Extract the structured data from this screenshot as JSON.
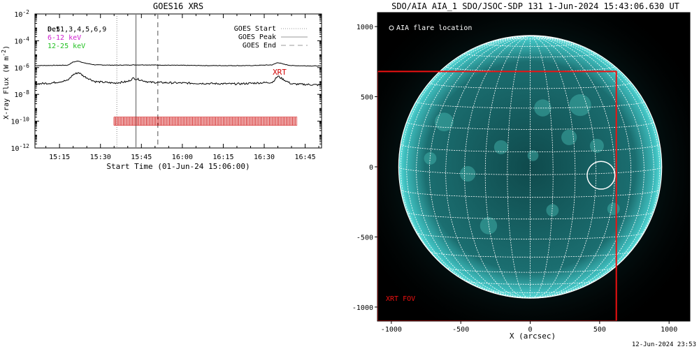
{
  "chart_data": [
    {
      "type": "line",
      "title": "GOES16 XRS",
      "xlabel": "Start Time (01-Jun-24 15:06:00)",
      "ylabel": "X-ray Flux (W m^-2)",
      "x_tick_labels": [
        "15:15",
        "15:30",
        "15:45",
        "16:00",
        "16:15",
        "16:30",
        "16:45"
      ],
      "x_tick_times": [
        "15:15",
        "15:30",
        "15:45",
        "16:00",
        "16:15",
        "16:30",
        "16:45"
      ],
      "xlim": [
        "15:06",
        "16:51"
      ],
      "ylim": [
        1e-12,
        0.01
      ],
      "yscale": "log",
      "y_tick_exponents": [
        -2,
        -4,
        -6,
        -8,
        -10,
        -12
      ],
      "y_tick_base": "10",
      "legend_header": "Det1,3,4,5,6,9",
      "legend_header_overlay": "0.5",
      "channels": [
        {
          "label": "6-12 keV",
          "color": "#d020d0"
        },
        {
          "label": "12-25 keV",
          "color": "#20c020"
        }
      ],
      "series": [
        {
          "name": "upper",
          "color": "#000000",
          "x": [
            "15:06",
            "15:18",
            "15:20",
            "15:22",
            "15:24",
            "15:28",
            "15:35",
            "15:45",
            "15:55",
            "16:10",
            "16:25",
            "16:33",
            "16:35",
            "16:37",
            "16:40",
            "16:51"
          ],
          "y": [
            1.4e-06,
            1.5e-06,
            2.6e-06,
            3.1e-06,
            2.2e-06,
            1.6e-06,
            1.5e-06,
            1.6e-06,
            1.5e-06,
            1.4e-06,
            1.4e-06,
            1.6e-06,
            2.4e-06,
            1.8e-06,
            1.4e-06,
            1.3e-06
          ]
        },
        {
          "name": "lower",
          "color": "#000000",
          "x": [
            "15:06",
            "15:12",
            "15:18",
            "15:20",
            "15:22",
            "15:24",
            "15:28",
            "15:35",
            "15:40",
            "15:42",
            "15:44",
            "15:48",
            "16:00",
            "16:20",
            "16:33",
            "16:35",
            "16:37",
            "16:40",
            "16:51"
          ],
          "y": [
            6e-08,
            7e-08,
            1.1e-07,
            3e-07,
            4.3e-07,
            2.2e-07,
            9e-08,
            7e-08,
            9e-08,
            1.6e-07,
            1.3e-07,
            8e-08,
            7e-08,
            6e-08,
            8e-08,
            2.3e-07,
            1.3e-07,
            6e-08,
            5e-08
          ]
        }
      ],
      "legend": [
        {
          "label": "GOES Start",
          "style": "dotted"
        },
        {
          "label": "GOES Peak",
          "style": "solid"
        },
        {
          "label": "GOES End",
          "style": "dashed"
        }
      ],
      "vlines": {
        "start": "15:36",
        "peak": "15:43",
        "end": "15:51"
      },
      "xrt_label": "XRT",
      "xrt_bar": {
        "from": "15:35",
        "to": "16:42",
        "y": 1e-10,
        "color": "#cc0000"
      }
    },
    {
      "type": "image",
      "title": "SDO/AIA AIA_1 SDO/JSOC-SDP 131  1-Jun-2024 15:43:06.630 UT",
      "xlabel": "X (arcsec)",
      "x_tick_labels": [
        "-1000",
        "-500",
        "0",
        "500",
        "1000"
      ],
      "y_tick_labels": [
        "1000",
        "500",
        "0",
        "-500",
        "-1000"
      ],
      "xlim": [
        -1100,
        1150
      ],
      "ylim": [
        -1100,
        1100
      ],
      "solar_radius_arcsec": 947,
      "legend_marker_label": "AIA flare location",
      "flare_location": {
        "x": 510,
        "y": -60,
        "radius": 100
      },
      "xrt_fov": {
        "x1": -1100,
        "y1": -1100,
        "x2": 620,
        "y2": 680,
        "label": "XRT FOV",
        "color": "#ee1111"
      },
      "disk_color": "#1a6b6b",
      "grid_color": "#ffffff"
    }
  ],
  "footer": {
    "timestamp": "12-Jun-2024 23:53"
  }
}
